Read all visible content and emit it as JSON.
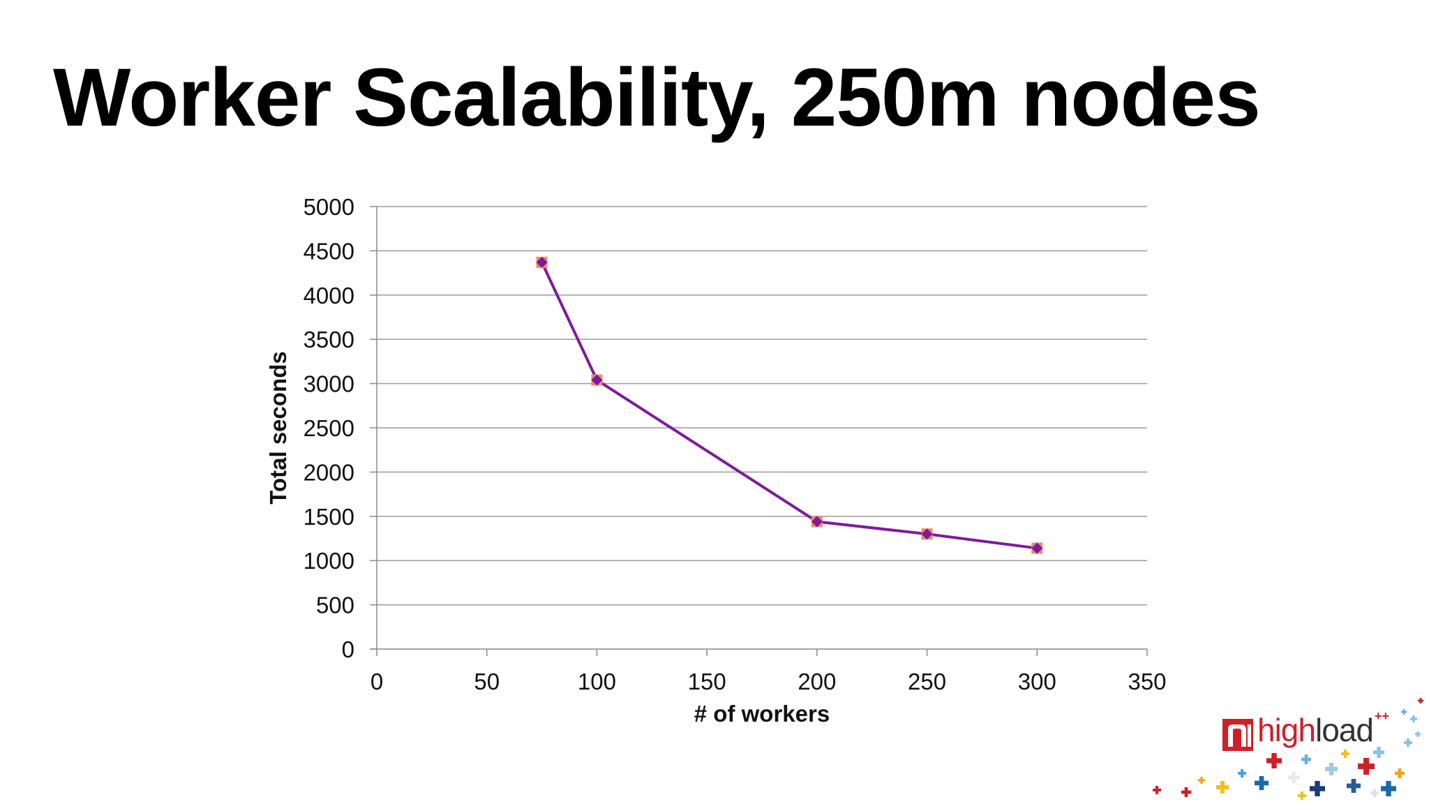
{
  "slide": {
    "title": "Worker Scalability, 250m nodes"
  },
  "chart_data": {
    "type": "line",
    "title": "",
    "xlabel": "# of workers",
    "ylabel": "Total seconds",
    "xlim": [
      0,
      350
    ],
    "ylim": [
      0,
      5000
    ],
    "x_ticks": [
      0,
      50,
      100,
      150,
      200,
      250,
      300,
      350
    ],
    "y_ticks": [
      0,
      500,
      1000,
      1500,
      2000,
      2500,
      3000,
      3500,
      4000,
      4500,
      5000
    ],
    "grid": "horizontal",
    "legend": "none",
    "series": [
      {
        "color": "#7f1a9a",
        "marker_color": "#f08a6a",
        "points": [
          {
            "x": 75,
            "y": 4370
          },
          {
            "x": 100,
            "y": 3040
          },
          {
            "x": 200,
            "y": 1440
          },
          {
            "x": 250,
            "y": 1300
          },
          {
            "x": 300,
            "y": 1140
          }
        ]
      }
    ]
  },
  "logo": {
    "name": "highload",
    "prefix": "high",
    "suffix": "load",
    "superscript": "++",
    "icon": "highload-logo-icon"
  }
}
